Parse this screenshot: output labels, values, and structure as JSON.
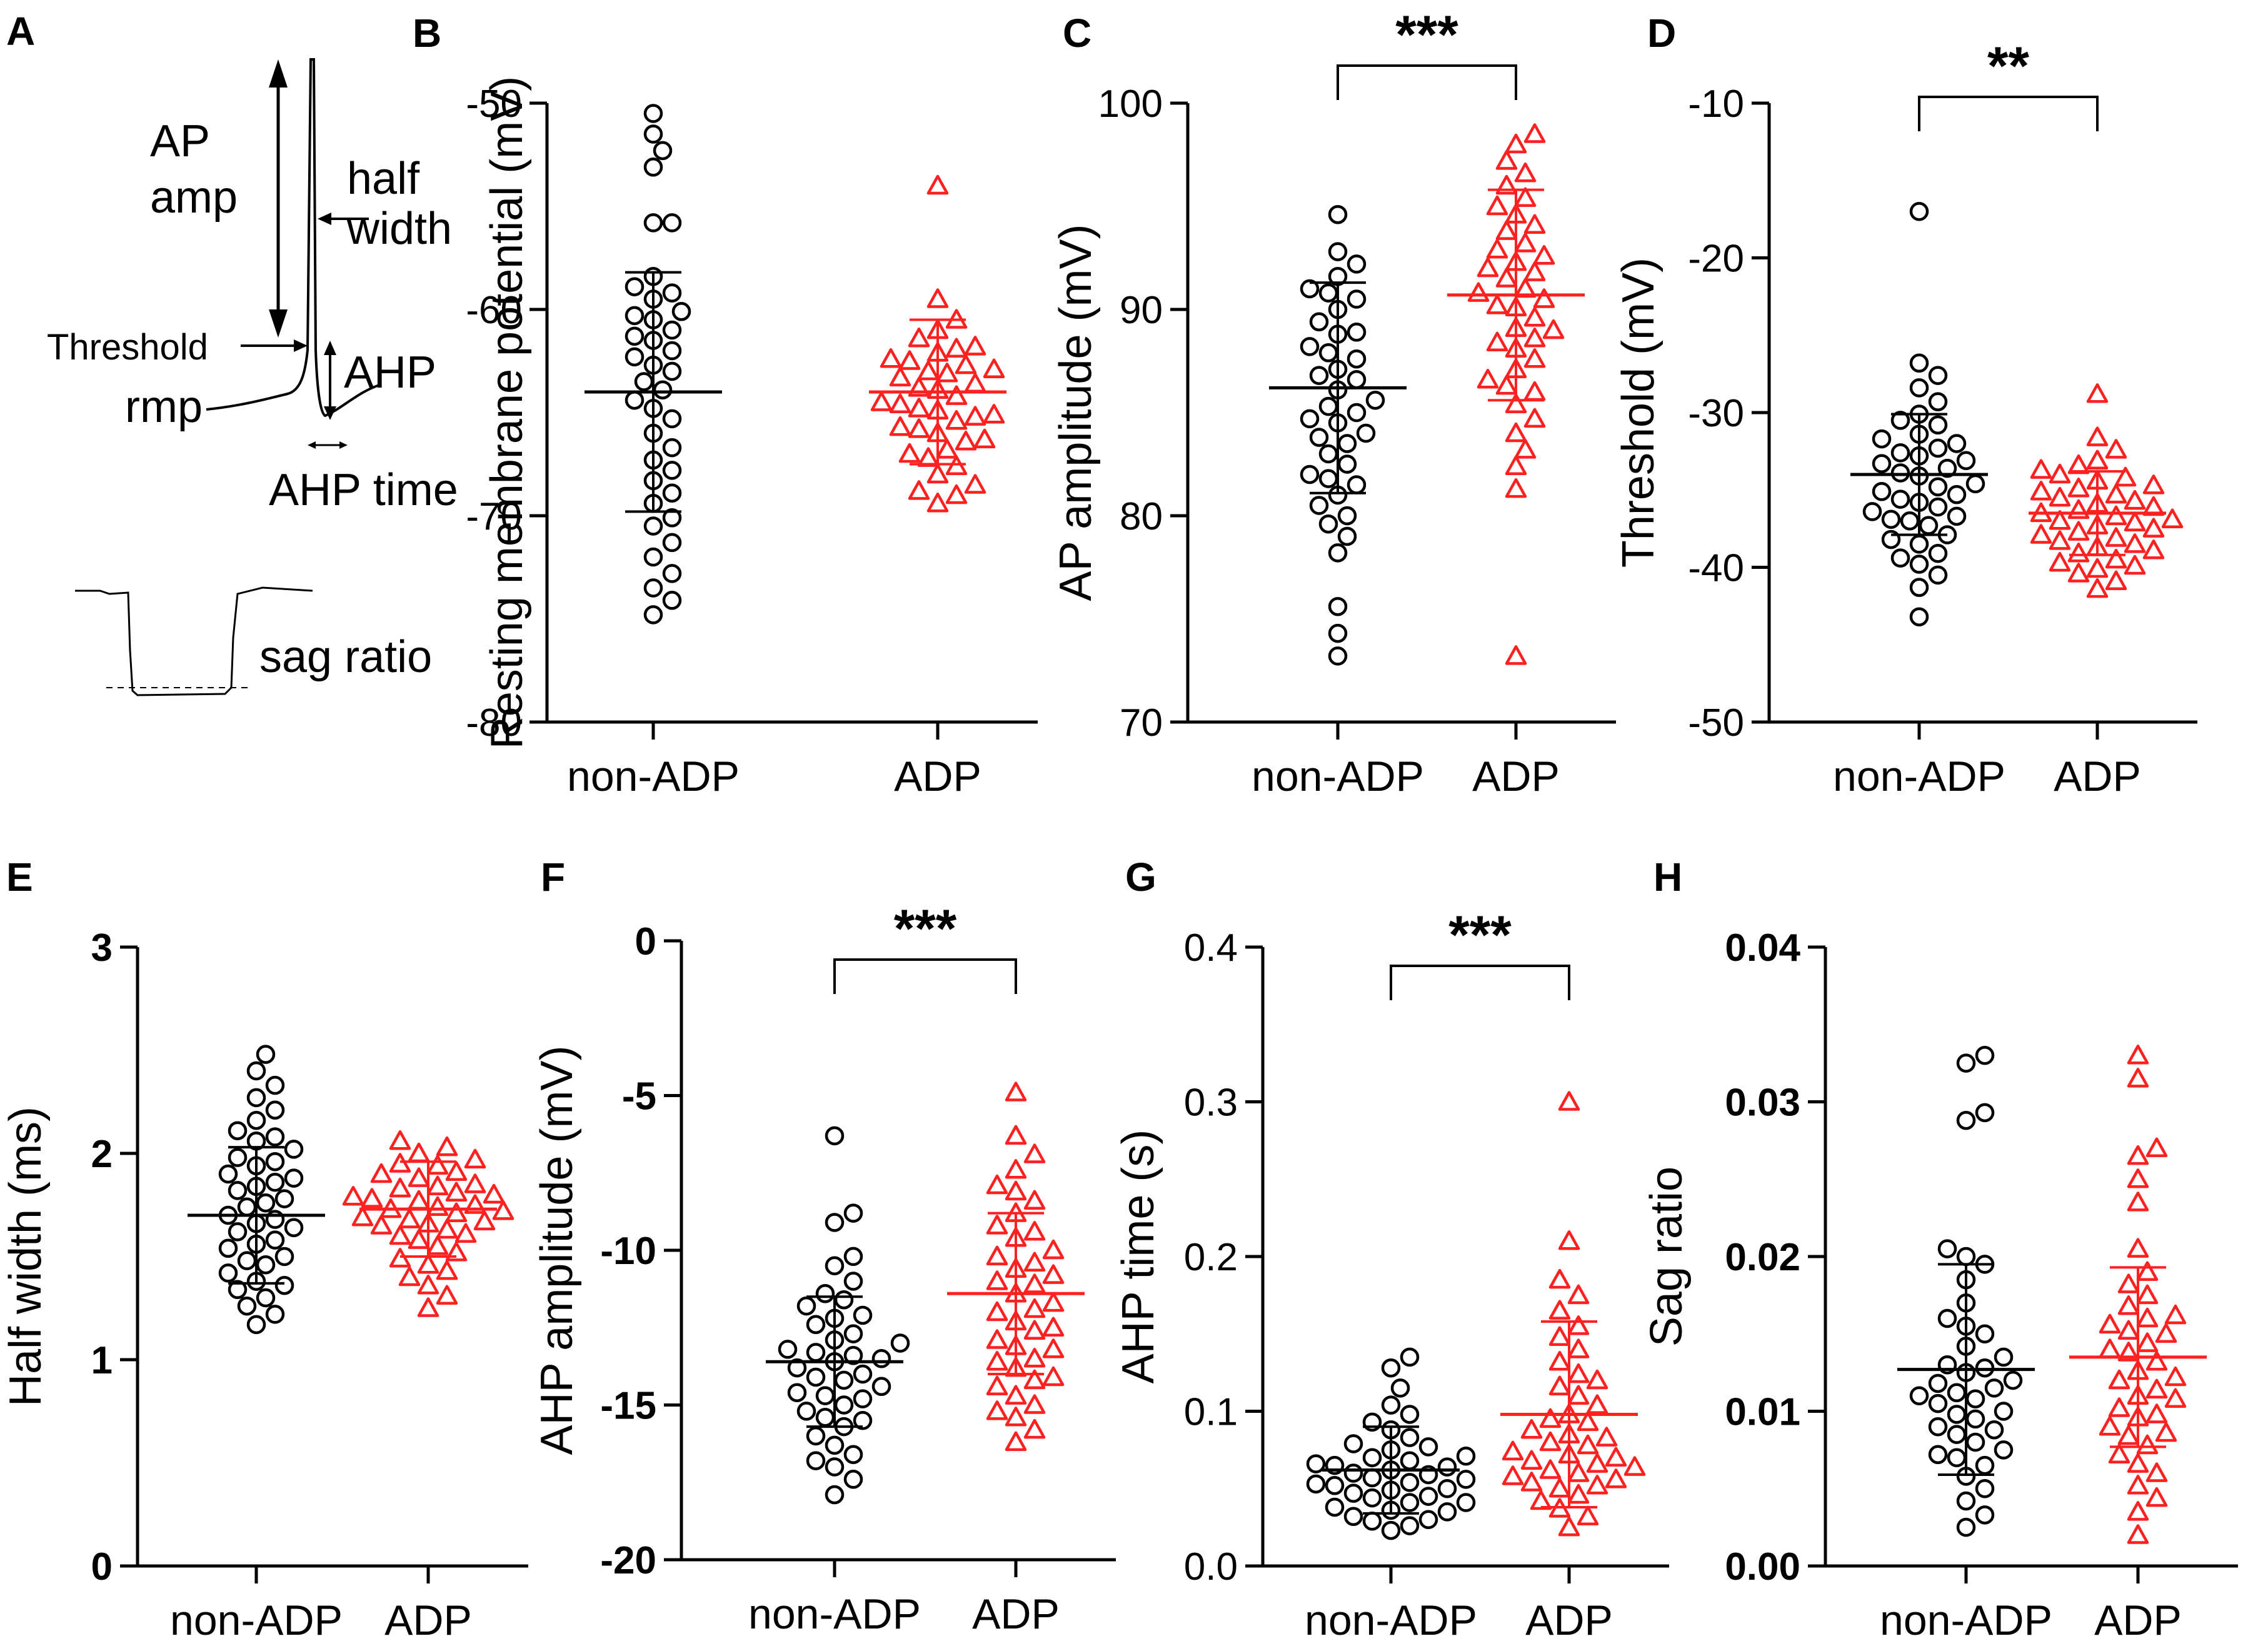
{
  "colors": {
    "non_adp": "#000000",
    "adp": "#ff2020",
    "axis": "#000000"
  },
  "panel_a": {
    "label": "A",
    "ap_amp_line1": "AP",
    "ap_amp_line2": "amp",
    "half_width_line1": "half",
    "half_width_line2": "width",
    "threshold": "Threshold",
    "rmp": "rmp",
    "ahp": "AHP",
    "ahp_time": "AHP time",
    "sag_ratio": "sag ratio"
  },
  "chart_data": [
    {
      "id": "B",
      "label": "B",
      "type": "scatter",
      "ylabel": "Resting membrane potential (mV)",
      "ylim": [
        -80,
        -50
      ],
      "yticks": [
        "-80",
        "-70",
        "-60",
        "-50"
      ],
      "ytick_bold": false,
      "categories": [
        "non-ADP",
        "ADP"
      ],
      "significance": "",
      "series": [
        {
          "name": "non-ADP",
          "marker": "circle",
          "mean": -64.0,
          "sd": 5.8,
          "values": [
            -50.5,
            -51.5,
            -52.3,
            -53.1,
            -55.8,
            -55.8,
            -58.4,
            -58.9,
            -59.2,
            -59.5,
            -60.1,
            -60.3,
            -60.5,
            -61.0,
            -61.3,
            -61.5,
            -62.0,
            -62.3,
            -62.7,
            -63.0,
            -63.5,
            -63.9,
            -64.4,
            -64.8,
            -65.3,
            -66.0,
            -66.7,
            -67.3,
            -67.8,
            -68.3,
            -68.9,
            -69.4,
            -70.1,
            -70.5,
            -71.3,
            -72.0,
            -72.8,
            -73.5,
            -74.1,
            -74.8
          ]
        },
        {
          "name": "ADP",
          "marker": "triangle",
          "mean": -64.0,
          "sd": 3.5,
          "values": [
            -54.0,
            -59.5,
            -60.5,
            -61.0,
            -61.4,
            -61.8,
            -62.1,
            -62.4,
            -62.7,
            -63.0,
            -63.3,
            -63.6,
            -63.9,
            -64.2,
            -64.5,
            -64.8,
            -65.1,
            -65.4,
            -65.7,
            -66.0,
            -66.4,
            -66.8,
            -67.2,
            -67.6,
            -68.0,
            -68.5,
            -69.0,
            -69.4,
            -62.5,
            -63.8,
            -65.2,
            -66.3,
            -63.1,
            -64.9,
            -61.9,
            -67.0,
            -68.8,
            -65.8,
            -62.9,
            -64.6
          ]
        }
      ]
    },
    {
      "id": "C",
      "label": "C",
      "type": "scatter",
      "ylabel": "AP amplitude (mV)",
      "ylim": [
        70,
        100
      ],
      "yticks": [
        "70",
        "80",
        "90",
        "100"
      ],
      "ytick_bold": false,
      "categories": [
        "non-ADP",
        "ADP"
      ],
      "significance": "***",
      "series": [
        {
          "name": "non-ADP",
          "marker": "circle",
          "mean": 86.2,
          "sd": 5.1,
          "values": [
            94.6,
            92.8,
            92.2,
            91.6,
            91.0,
            90.5,
            90.0,
            89.4,
            88.8,
            88.2,
            87.6,
            87.1,
            86.6,
            86.1,
            85.6,
            85.0,
            84.5,
            84.0,
            83.5,
            83.0,
            82.5,
            82.0,
            81.5,
            81.0,
            80.5,
            80.0,
            79.6,
            79.0,
            78.2,
            75.6,
            74.3,
            73.2,
            86.8,
            88.9,
            83.8,
            85.3,
            90.8,
            81.8,
            87.9,
            84.7
          ]
        },
        {
          "name": "ADP",
          "marker": "triangle",
          "mean": 90.7,
          "sd": 5.1,
          "values": [
            98.5,
            98.0,
            97.2,
            96.6,
            96.0,
            95.4,
            94.6,
            93.8,
            93.2,
            92.6,
            92.0,
            91.5,
            91.0,
            90.5,
            90.1,
            89.6,
            89.1,
            88.6,
            88.1,
            87.6,
            87.1,
            86.6,
            86.0,
            85.4,
            84.7,
            84.0,
            83.2,
            82.4,
            81.3,
            73.2,
            91.8,
            90.2,
            89.0,
            92.9,
            94.1,
            88.4,
            86.3,
            95.0,
            92.3,
            90.8
          ]
        }
      ]
    },
    {
      "id": "D",
      "label": "D",
      "type": "scatter",
      "ylabel": "Threshold (mV)",
      "ylim": [
        -50,
        -10
      ],
      "yticks": [
        "-50",
        "-40",
        "-30",
        "-20",
        "-10"
      ],
      "ytick_bold": false,
      "categories": [
        "non-ADP",
        "ADP"
      ],
      "significance": "**",
      "series": [
        {
          "name": "non-ADP",
          "marker": "circle",
          "mean": -34.0,
          "sd": 3.9,
          "values": [
            -17.0,
            -26.8,
            -27.6,
            -28.4,
            -29.3,
            -30.1,
            -30.8,
            -31.4,
            -32.0,
            -32.6,
            -33.1,
            -33.6,
            -34.1,
            -34.6,
            -35.1,
            -35.6,
            -36.1,
            -36.7,
            -37.3,
            -37.9,
            -38.5,
            -39.1,
            -39.8,
            -40.5,
            -41.3,
            -43.2,
            -32.3,
            -33.9,
            -35.3,
            -36.4,
            -31.7,
            -34.8,
            -37.0,
            -38.2,
            -33.3,
            -30.5,
            -35.8,
            -39.4,
            -32.8,
            -36.9
          ]
        },
        {
          "name": "ADP",
          "marker": "triangle",
          "mean": -36.5,
          "sd": 2.7,
          "values": [
            -28.8,
            -31.6,
            -32.4,
            -33.1,
            -33.7,
            -34.2,
            -34.7,
            -35.1,
            -35.5,
            -35.9,
            -36.3,
            -36.7,
            -37.1,
            -37.5,
            -37.9,
            -38.3,
            -38.7,
            -39.1,
            -39.5,
            -39.9,
            -40.4,
            -40.9,
            -41.4,
            -34.0,
            -35.3,
            -36.5,
            -37.7,
            -38.9,
            -34.9,
            -36.1,
            -37.3,
            -38.5,
            -33.4,
            -36.9,
            -39.7,
            -35.7,
            -37.0,
            -40.1,
            -34.4,
            -38.1
          ]
        }
      ]
    },
    {
      "id": "E",
      "label": "E",
      "type": "scatter",
      "ylabel": "Half width (ms)",
      "ylim": [
        0,
        3
      ],
      "yticks": [
        "0",
        "1",
        "2",
        "3"
      ],
      "ytick_bold": true,
      "categories": [
        "non-ADP",
        "ADP"
      ],
      "significance": "",
      "series": [
        {
          "name": "non-ADP",
          "marker": "circle",
          "mean": 1.7,
          "sd": 0.33,
          "values": [
            2.48,
            2.4,
            2.33,
            2.27,
            2.21,
            2.16,
            2.11,
            2.06,
            2.02,
            1.98,
            1.94,
            1.9,
            1.86,
            1.82,
            1.78,
            1.74,
            1.7,
            1.66,
            1.62,
            1.58,
            1.54,
            1.5,
            1.46,
            1.42,
            1.38,
            1.34,
            1.3,
            1.26,
            1.22,
            1.17,
            2.08,
            1.88,
            1.68,
            1.48,
            1.96,
            1.76,
            1.56,
            1.36,
            1.84,
            1.64
          ]
        },
        {
          "name": "ADP",
          "marker": "triangle",
          "mean": 1.73,
          "sd": 0.23,
          "values": [
            2.06,
            2.03,
            2.0,
            1.97,
            1.94,
            1.91,
            1.88,
            1.85,
            1.83,
            1.81,
            1.79,
            1.77,
            1.75,
            1.73,
            1.71,
            1.69,
            1.67,
            1.65,
            1.63,
            1.61,
            1.58,
            1.55,
            1.52,
            1.49,
            1.46,
            1.43,
            1.4,
            1.36,
            1.31,
            1.25,
            1.78,
            1.72,
            1.84,
            1.66,
            1.9,
            1.6,
            1.74,
            1.8,
            1.68,
            1.95
          ]
        }
      ]
    },
    {
      "id": "F",
      "label": "F",
      "type": "scatter",
      "ylabel": "AHP amplitude (mV)",
      "ylim": [
        -20,
        0
      ],
      "yticks": [
        "-20",
        "-15",
        "-10",
        "-5",
        "0"
      ],
      "ytick_bold": true,
      "categories": [
        "non-ADP",
        "ADP"
      ],
      "significance": "***",
      "series": [
        {
          "name": "non-ADP",
          "marker": "circle",
          "mean": -13.6,
          "sd": 2.1,
          "values": [
            -6.3,
            -8.8,
            -9.1,
            -10.2,
            -10.5,
            -11.0,
            -11.4,
            -11.8,
            -12.1,
            -12.4,
            -12.7,
            -13.0,
            -13.2,
            -13.4,
            -13.6,
            -13.8,
            -14.0,
            -14.2,
            -14.4,
            -14.6,
            -14.8,
            -15.0,
            -15.2,
            -15.4,
            -15.7,
            -16.0,
            -16.3,
            -16.6,
            -17.0,
            -17.4,
            -17.9,
            -12.9,
            -13.5,
            -14.1,
            -14.7,
            -12.2,
            -15.5,
            -11.6,
            -13.3,
            -16.8
          ]
        },
        {
          "name": "ADP",
          "marker": "triangle",
          "mean": -11.4,
          "sd": 2.6,
          "values": [
            -4.9,
            -6.3,
            -6.9,
            -7.4,
            -7.9,
            -8.4,
            -8.8,
            -9.2,
            -9.6,
            -10.0,
            -10.4,
            -10.8,
            -11.1,
            -11.4,
            -11.7,
            -12.0,
            -12.3,
            -12.6,
            -12.9,
            -13.2,
            -13.5,
            -13.8,
            -14.1,
            -14.4,
            -14.7,
            -15.0,
            -15.4,
            -15.8,
            -16.2,
            -9.4,
            -10.6,
            -11.9,
            -13.1,
            -8.1,
            -12.5,
            -14.2,
            -10.2,
            -11.0,
            -13.6,
            -15.2
          ]
        }
      ]
    },
    {
      "id": "G",
      "label": "G",
      "type": "scatter",
      "ylabel": "AHP time (s)",
      "ylim": [
        0.0,
        0.4
      ],
      "yticks": [
        "0.0",
        "0.1",
        "0.2",
        "0.3",
        "0.4"
      ],
      "ytick_bold": false,
      "categories": [
        "non-ADP",
        "ADP"
      ],
      "significance": "***",
      "series": [
        {
          "name": "non-ADP",
          "marker": "circle",
          "mean": 0.062,
          "sd": 0.028,
          "values": [
            0.135,
            0.128,
            0.115,
            0.104,
            0.098,
            0.093,
            0.088,
            0.083,
            0.079,
            0.075,
            0.071,
            0.068,
            0.065,
            0.062,
            0.059,
            0.056,
            0.053,
            0.05,
            0.047,
            0.044,
            0.041,
            0.038,
            0.035,
            0.032,
            0.029,
            0.026,
            0.023,
            0.06,
            0.052,
            0.045,
            0.07,
            0.036,
            0.064,
            0.049,
            0.057,
            0.041,
            0.077,
            0.03,
            0.054,
            0.066
          ]
        },
        {
          "name": "ADP",
          "marker": "triangle",
          "mean": 0.098,
          "sd": 0.06,
          "values": [
            0.3,
            0.21,
            0.185,
            0.175,
            0.165,
            0.155,
            0.148,
            0.14,
            0.132,
            0.124,
            0.116,
            0.11,
            0.104,
            0.098,
            0.093,
            0.088,
            0.083,
            0.078,
            0.074,
            0.07,
            0.066,
            0.062,
            0.058,
            0.054,
            0.05,
            0.046,
            0.042,
            0.037,
            0.032,
            0.025,
            0.085,
            0.072,
            0.064,
            0.056,
            0.095,
            0.068,
            0.052,
            0.08,
            0.06,
            0.12
          ]
        }
      ]
    },
    {
      "id": "H",
      "label": "H",
      "type": "scatter",
      "ylabel": "Sag ratio",
      "ylim": [
        0.0,
        0.04
      ],
      "yticks": [
        "0.00",
        "0.01",
        "0.02",
        "0.03",
        "0.04"
      ],
      "ytick_bold": true,
      "categories": [
        "non-ADP",
        "ADP"
      ],
      "significance": "",
      "series": [
        {
          "name": "non-ADP",
          "marker": "circle",
          "mean": 0.0127,
          "sd": 0.0068,
          "values": [
            0.033,
            0.0325,
            0.0293,
            0.0288,
            0.0205,
            0.02,
            0.0195,
            0.0185,
            0.017,
            0.016,
            0.015,
            0.0142,
            0.0135,
            0.013,
            0.0125,
            0.012,
            0.0115,
            0.011,
            0.0105,
            0.01,
            0.0095,
            0.009,
            0.0085,
            0.008,
            0.0075,
            0.007,
            0.0065,
            0.0058,
            0.005,
            0.0042,
            0.0033,
            0.0025,
            0.0112,
            0.0098,
            0.0088,
            0.0118,
            0.0128,
            0.0072,
            0.0108,
            0.0155
          ]
        },
        {
          "name": "ADP",
          "marker": "triangle",
          "mean": 0.0135,
          "sd": 0.0058,
          "values": [
            0.033,
            0.0315,
            0.027,
            0.0265,
            0.025,
            0.0235,
            0.0205,
            0.019,
            0.0182,
            0.0175,
            0.0168,
            0.0162,
            0.0156,
            0.015,
            0.0144,
            0.0138,
            0.0132,
            0.0126,
            0.012,
            0.0114,
            0.0108,
            0.0102,
            0.0096,
            0.009,
            0.0084,
            0.0078,
            0.0072,
            0.0066,
            0.006,
            0.0052,
            0.0044,
            0.0035,
            0.002,
            0.014,
            0.0122,
            0.011,
            0.0152,
            0.016,
            0.0098,
            0.0086
          ]
        }
      ]
    }
  ]
}
